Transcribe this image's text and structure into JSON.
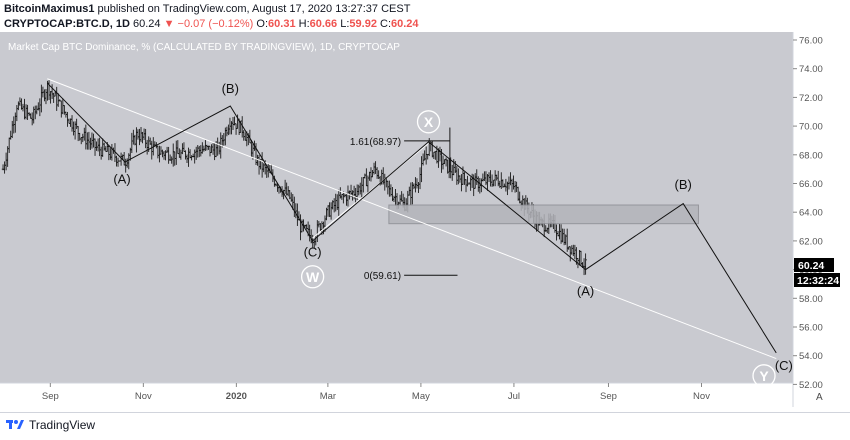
{
  "header": {
    "author": "BitcoinMaximus1",
    "published_text": "published on TradingView.com, August 17, 2020 13:27:37 CEST",
    "symbol": "CRYPTOCAP:BTC.D, 1D",
    "last_price": "60.24",
    "change_arrow": "▼",
    "change": "−0.07 (−0.12%)",
    "o_label": "O:",
    "o_value": "60.31",
    "h_label": "H:",
    "h_value": "60.66",
    "l_label": "L:",
    "l_value": "59.92",
    "c_label": "C:",
    "c_value": "60.24"
  },
  "footer": {
    "brand": "TradingView"
  },
  "colors": {
    "plot_bg": "#c9cad0",
    "bars": "#1a1a1a",
    "trendline": "#ffffff",
    "price_box": "#000000",
    "rect_fill": "#b3b4ba",
    "rect_stroke": "#8c8d93"
  },
  "chart_data": {
    "type": "ohlc",
    "title": "Market Cap BTC Dominance, % (CALCULATED BY TRADINGVIEW), 1D, CRYPTOCAP",
    "xlabel": "",
    "ylabel": "",
    "x_ticks": [
      "Sep",
      "Nov",
      "2020",
      "Mar",
      "May",
      "Jul",
      "Sep",
      "Nov"
    ],
    "y_ticks": [
      "76.00",
      "74.00",
      "72.00",
      "70.00",
      "68.00",
      "66.00",
      "64.00",
      "62.00",
      "60.00",
      "58.00",
      "56.00",
      "54.00",
      "52.00"
    ],
    "ylim": [
      52,
      76
    ],
    "last_value": "60.24",
    "countdown": "12:32:24",
    "corner_label": "A",
    "price_path": [
      [
        "2019-08-01",
        67.0
      ],
      [
        "2019-08-10",
        71.5
      ],
      [
        "2019-08-20",
        70.5
      ],
      [
        "2019-08-30",
        72.8
      ],
      [
        "2019-09-10",
        71.0
      ],
      [
        "2019-09-20",
        69.5
      ],
      [
        "2019-10-01",
        68.5
      ],
      [
        "2019-10-12",
        68.0
      ],
      [
        "2019-10-20",
        67.5
      ],
      [
        "2019-10-28",
        69.5
      ],
      [
        "2019-11-10",
        68.2
      ],
      [
        "2019-11-25",
        68.0
      ],
      [
        "2019-12-10",
        68.4
      ],
      [
        "2019-12-20",
        68.3
      ],
      [
        "2019-12-28",
        70.5
      ],
      [
        "2020-01-05",
        69.8
      ],
      [
        "2020-01-15",
        67.5
      ],
      [
        "2020-01-28",
        66.0
      ],
      [
        "2020-02-05",
        65.0
      ],
      [
        "2020-02-12",
        63.0
      ],
      [
        "2020-02-20",
        62.2
      ],
      [
        "2020-03-01",
        64.0
      ],
      [
        "2020-03-10",
        65.0
      ],
      [
        "2020-03-20",
        65.5
      ],
      [
        "2020-04-01",
        67.0
      ],
      [
        "2020-04-10",
        65.5
      ],
      [
        "2020-04-20",
        64.5
      ],
      [
        "2020-04-30",
        66.5
      ],
      [
        "2020-05-06",
        68.6
      ],
      [
        "2020-05-15",
        67.5
      ],
      [
        "2020-05-25",
        66.5
      ],
      [
        "2020-06-05",
        66.0
      ],
      [
        "2020-06-20",
        66.3
      ],
      [
        "2020-07-01",
        65.8
      ],
      [
        "2020-07-08",
        64.5
      ],
      [
        "2020-07-18",
        63.2
      ],
      [
        "2020-07-28",
        63.0
      ],
      [
        "2020-08-05",
        61.8
      ],
      [
        "2020-08-12",
        61.0
      ],
      [
        "2020-08-17",
        60.24
      ]
    ],
    "annotations": [
      {
        "text": "(A)"
      },
      {
        "text": "(B)"
      },
      {
        "text": "(C)"
      },
      {
        "text": "W"
      },
      {
        "text": "X"
      },
      {
        "text": "(A)"
      },
      {
        "text": "(B)"
      },
      {
        "text": "(C)"
      },
      {
        "text": "Y"
      },
      {
        "text": "1.61(68.97)"
      },
      {
        "text": "0(59.61)"
      }
    ]
  }
}
